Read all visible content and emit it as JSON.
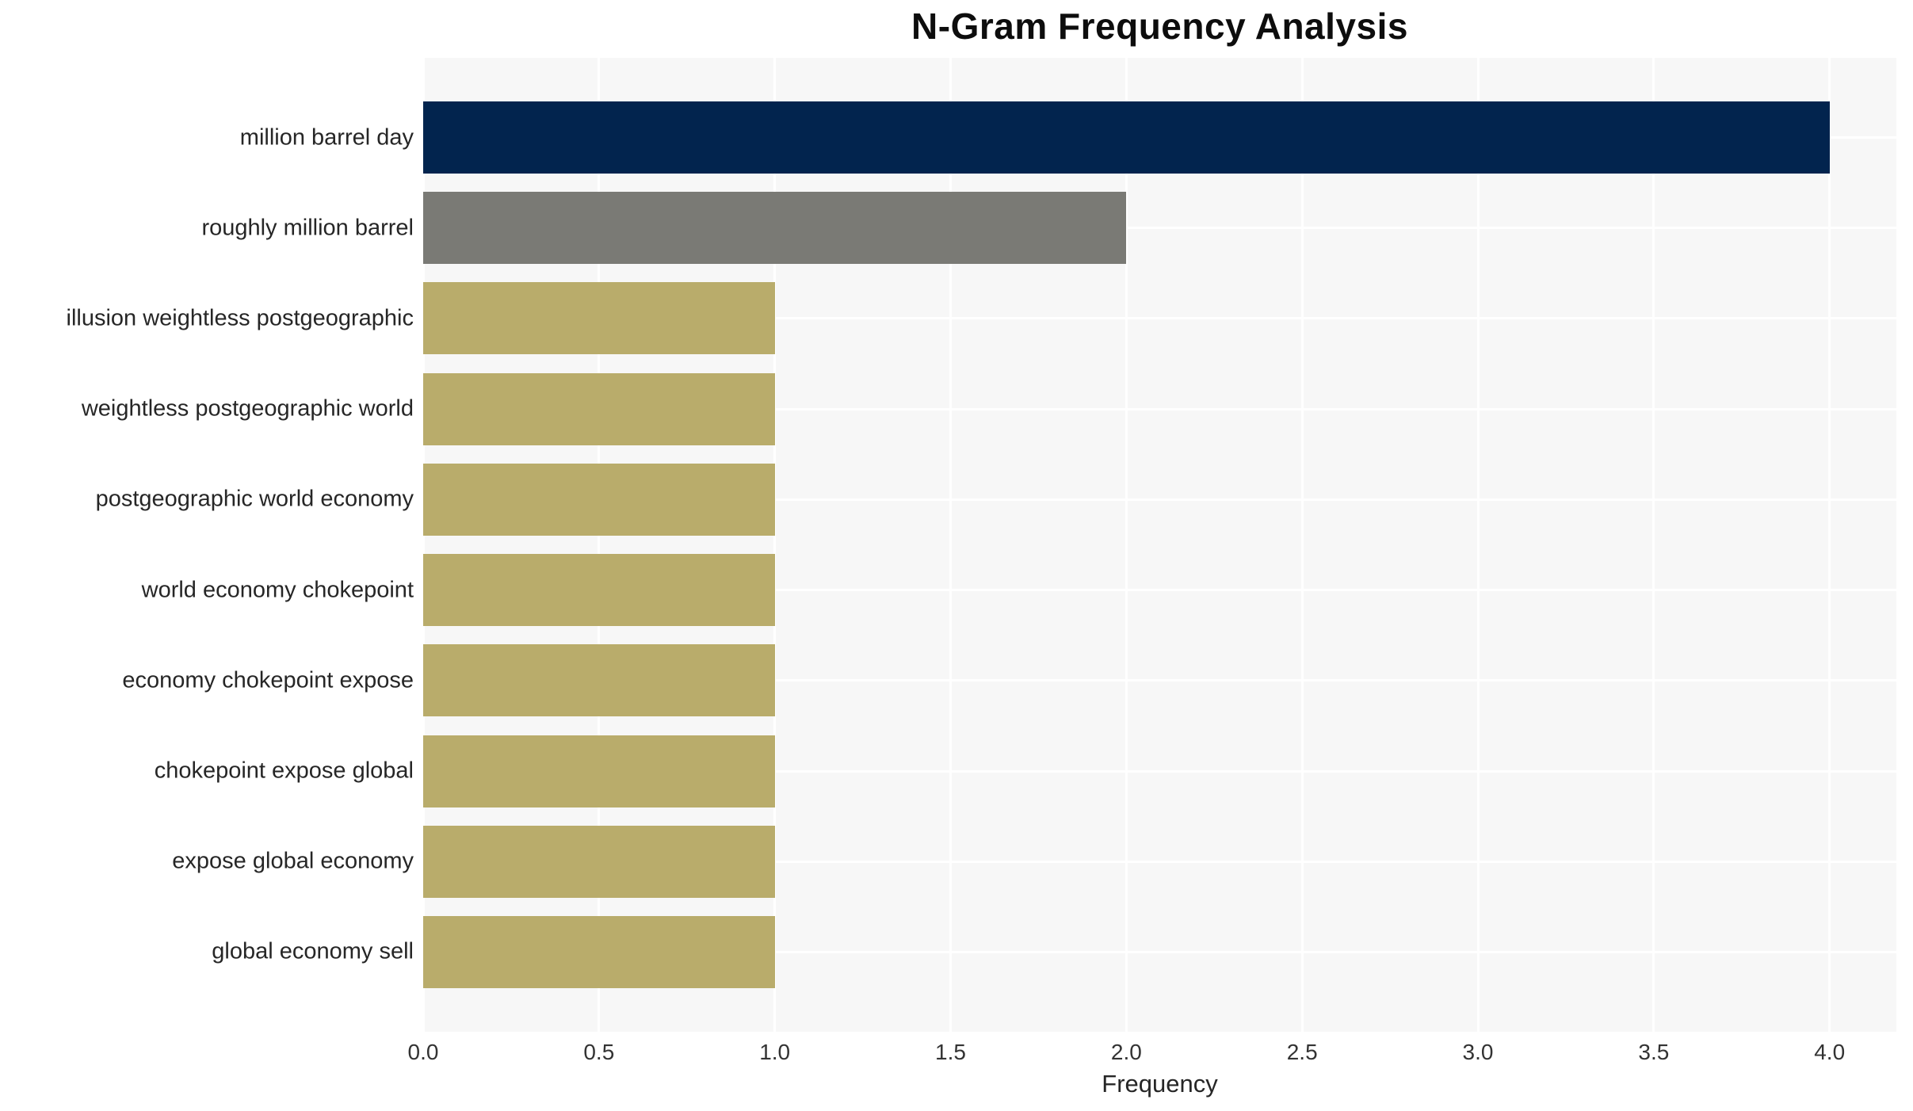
{
  "chart_data": {
    "type": "bar",
    "orientation": "horizontal",
    "title": "N-Gram Frequency Analysis",
    "xlabel": "Frequency",
    "ylabel": "",
    "categories": [
      "million barrel day",
      "roughly million barrel",
      "illusion weightless postgeographic",
      "weightless postgeographic world",
      "postgeographic world economy",
      "world economy chokepoint",
      "economy chokepoint expose",
      "chokepoint expose global",
      "expose global economy",
      "global economy sell"
    ],
    "values": [
      4,
      2,
      1,
      1,
      1,
      1,
      1,
      1,
      1,
      1
    ],
    "bar_colors": [
      "#02244e",
      "#7a7a75",
      "#b9ac6b",
      "#b9ac6b",
      "#b9ac6b",
      "#b9ac6b",
      "#b9ac6b",
      "#b9ac6b",
      "#b9ac6b",
      "#b9ac6b"
    ],
    "xticks": [
      0.0,
      0.5,
      1.0,
      1.5,
      2.0,
      2.5,
      3.0,
      3.5,
      4.0
    ],
    "xtick_labels": [
      "0.0",
      "0.5",
      "1.0",
      "1.5",
      "2.0",
      "2.5",
      "3.0",
      "3.5",
      "4.0"
    ],
    "xlim": [
      0,
      4.19
    ],
    "grid": true,
    "legend": false,
    "colors": {
      "plot_background": "#f7f7f7",
      "figure_background": "#ffffff",
      "gridline": "#ffffff",
      "title_text": "#0d0d0d",
      "axis_text": "#262626"
    }
  }
}
